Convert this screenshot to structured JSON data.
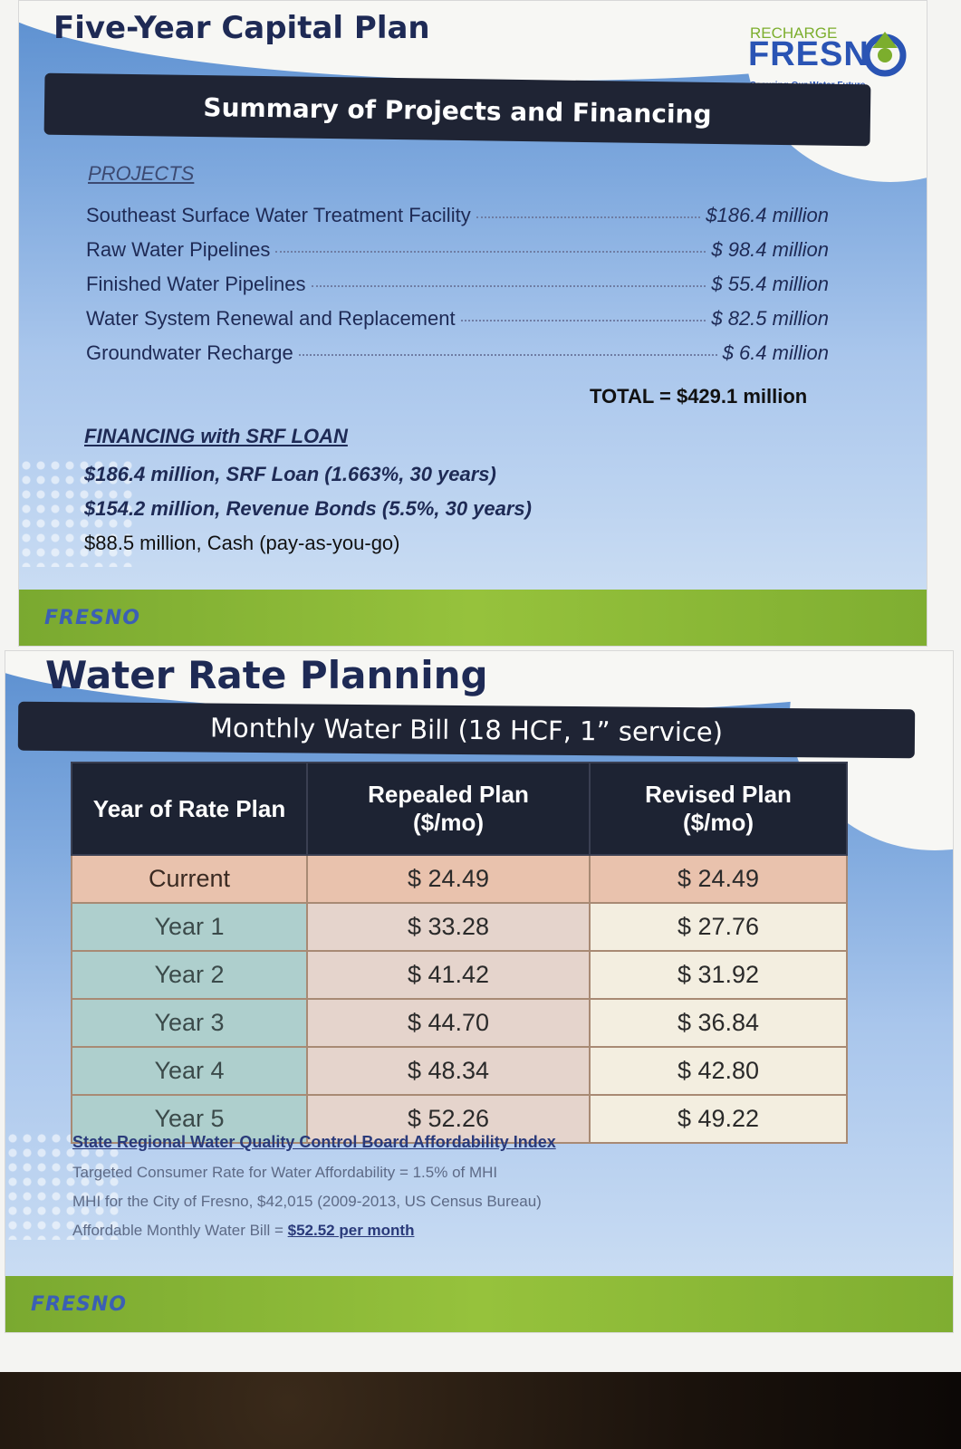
{
  "slide1": {
    "title": "Five-Year Capital Plan",
    "logo": {
      "small": "RECHARGE",
      "big": "FRESN",
      "tagline": "Securing Our Water Future"
    },
    "banner": "Summary of Projects and Financing",
    "projects_heading": "PROJECTS",
    "projects": [
      {
        "name": "Southeast Surface Water Treatment Facility",
        "amount": "$186.4 million"
      },
      {
        "name": "Raw Water  Pipelines",
        "amount": "$ 98.4 million"
      },
      {
        "name": "Finished Water Pipelines",
        "amount": "$ 55.4 million"
      },
      {
        "name": "Water System Renewal and Replacement",
        "amount": "$ 82.5 million"
      },
      {
        "name": "Groundwater Recharge",
        "amount": "$ 6.4 million"
      }
    ],
    "total": "TOTAL = $429.1 million",
    "financing_heading": "FINANCING with SRF LOAN",
    "financing": [
      "$186.4 million, SRF Loan (1.663%, 30 years)",
      "$154.2 million, Revenue Bonds (5.5%, 30 years)",
      "$88.5 million, Cash (pay-as-you-go)"
    ],
    "footer_logo": "FRESNO"
  },
  "slide2": {
    "title": "Water Rate Planning",
    "banner": "Monthly Water Bill (18 HCF, 1” service)",
    "table": {
      "headers": [
        "Year of Rate Plan",
        "Repealed Plan\n($/mo)",
        "Revised Plan\n($/mo)"
      ],
      "rows": [
        [
          "Current",
          "$ 24.49",
          "$ 24.49"
        ],
        [
          "Year 1",
          "$ 33.28",
          "$ 27.76"
        ],
        [
          "Year 2",
          "$ 41.42",
          "$ 31.92"
        ],
        [
          "Year 3",
          "$ 44.70",
          "$ 36.84"
        ],
        [
          "Year 4",
          "$ 48.34",
          "$ 42.80"
        ],
        [
          "Year 5",
          "$ 52.26",
          "$ 49.22"
        ]
      ]
    },
    "notes": {
      "heading": "State Regional Water Quality Control Board Affordability Index",
      "line1": "Targeted Consumer Rate for Water Affordability = 1.5% of MHI",
      "line2": "MHI for the City of Fresno, $42,015 (2009-2013, US Census Bureau)",
      "line3_prefix": "Affordable Monthly Water Bill = ",
      "line3_value": "$52.52 per month"
    },
    "footer_logo": "FRESNO"
  }
}
